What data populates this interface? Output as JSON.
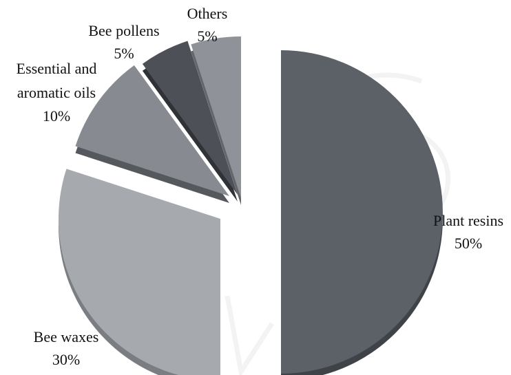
{
  "chart_data": {
    "type": "pie",
    "exploded": true,
    "style": "3d",
    "slices": [
      {
        "name": "Plant resins",
        "label_line1": "Plant resins",
        "value_label": "50%",
        "value": 50,
        "color": "#5c6168",
        "side_color": "#3f4348"
      },
      {
        "name": "Bee waxes",
        "label_line1": "Bee waxes",
        "value_label": "30%",
        "value": 30,
        "color": "#a6a9ae",
        "side_color": "#7a7d82"
      },
      {
        "name": "Essential and aromatic oils",
        "label_line1": "Essential and",
        "label_line2": "aromatic oils",
        "value_label": "10%",
        "value": 10,
        "color": "#878b91",
        "side_color": "#55595e"
      },
      {
        "name": "Bee pollens",
        "label_line1": "Bee pollens",
        "value_label": "5%",
        "value": 5,
        "color": "#4d5157",
        "side_color": "#2f3236"
      },
      {
        "name": "Others",
        "label_line1": "Others",
        "value_label": "5%",
        "value": 5,
        "color": "#8f9399",
        "side_color": "#62666b"
      }
    ]
  }
}
